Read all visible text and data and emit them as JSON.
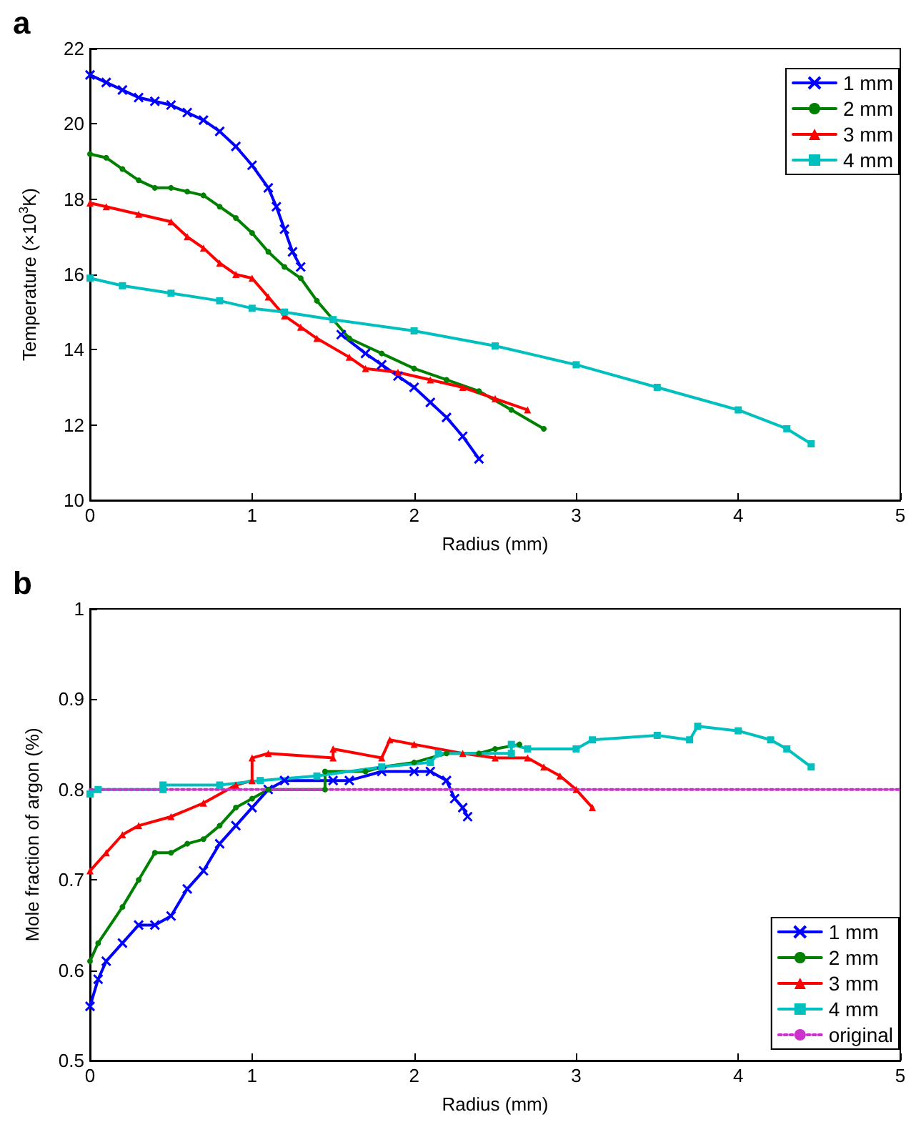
{
  "chart_data": [
    {
      "type": "line",
      "title": "a",
      "xlabel": "Radius (mm)",
      "ylabel": "Temperature (×10$^{3}$K)",
      "xlim": [
        0,
        5
      ],
      "xticks": [
        0,
        1,
        2,
        3,
        4,
        5
      ],
      "ylim": [
        10,
        22
      ],
      "yticks": [
        10,
        12,
        14,
        16,
        18,
        20,
        22
      ],
      "legend": "top right",
      "grid": false,
      "series": [
        {
          "name": "1 mm",
          "color": "#0000ff",
          "marker": "cross",
          "x": [
            0,
            0.1,
            0.2,
            0.3,
            0.4,
            0.5,
            0.6,
            0.7,
            0.8,
            0.9,
            1.0,
            1.1,
            1.15,
            1.2,
            1.25,
            1.3,
            1.4,
            1.55,
            1.7,
            1.8,
            1.9,
            2.0,
            2.1,
            2.2,
            2.3,
            2.4
          ],
          "values": [
            21.3,
            21.1,
            20.9,
            20.7,
            20.6,
            20.5,
            20.3,
            20.1,
            19.8,
            19.4,
            18.9,
            18.3,
            17.8,
            17.2,
            16.6,
            16.2,
            null,
            14.4,
            13.9,
            13.6,
            13.3,
            13.0,
            12.6,
            12.2,
            11.7,
            11.1
          ]
        },
        {
          "name": "2 mm",
          "color": "#008000",
          "marker": "circle",
          "x": [
            0,
            0.1,
            0.2,
            0.3,
            0.4,
            0.5,
            0.6,
            0.7,
            0.8,
            0.9,
            1.0,
            1.1,
            1.2,
            1.3,
            1.4,
            1.5,
            1.6,
            1.8,
            2.0,
            2.2,
            2.4,
            2.6,
            2.8
          ],
          "values": [
            19.2,
            19.1,
            18.8,
            18.5,
            18.3,
            18.3,
            18.2,
            18.1,
            17.8,
            17.5,
            17.1,
            16.6,
            16.2,
            15.9,
            15.3,
            14.8,
            14.3,
            13.9,
            13.5,
            13.2,
            12.9,
            12.4,
            11.9
          ]
        },
        {
          "name": "3 mm",
          "color": "#ff0000",
          "marker": "triangle",
          "x": [
            0,
            0.1,
            0.3,
            0.5,
            0.6,
            0.7,
            0.8,
            0.9,
            1.0,
            1.1,
            1.2,
            1.3,
            1.4,
            1.6,
            1.7,
            1.9,
            2.1,
            2.3,
            2.5,
            2.7
          ],
          "values": [
            17.9,
            17.8,
            17.6,
            17.4,
            17.0,
            16.7,
            16.3,
            16.0,
            15.9,
            15.4,
            14.9,
            14.6,
            14.3,
            13.8,
            13.5,
            13.4,
            13.2,
            13.0,
            12.7,
            12.4
          ]
        },
        {
          "name": "4 mm",
          "color": "#00bfbf",
          "marker": "square",
          "x": [
            0,
            0.2,
            0.5,
            0.8,
            1.0,
            1.2,
            1.5,
            2.0,
            2.5,
            3.0,
            3.5,
            4.0,
            4.3,
            4.45
          ],
          "values": [
            15.9,
            15.7,
            15.5,
            15.3,
            15.1,
            15.0,
            14.8,
            14.5,
            14.1,
            13.6,
            13.0,
            12.4,
            11.9,
            11.5
          ]
        }
      ]
    },
    {
      "type": "line",
      "title": "b",
      "xlabel": "Radius (mm)",
      "ylabel": "Mole fraction of argon (%)",
      "xlim": [
        0,
        5
      ],
      "xticks": [
        0,
        1,
        2,
        3,
        4,
        5
      ],
      "ylim": [
        0.5,
        1
      ],
      "yticks": [
        0.5,
        0.6,
        0.7,
        0.8,
        0.9,
        1
      ],
      "legend": "bottom right",
      "grid": false,
      "series": [
        {
          "name": "1 mm",
          "color": "#0000ff",
          "marker": "cross",
          "x": [
            0,
            0.05,
            0.1,
            0.2,
            0.3,
            0.4,
            0.5,
            0.6,
            0.7,
            0.8,
            0.9,
            1.0,
            1.1,
            1.2,
            1.5,
            1.6,
            1.8,
            2.0,
            2.1,
            2.2,
            2.25,
            2.3,
            2.33
          ],
          "values": [
            0.56,
            0.59,
            0.61,
            0.63,
            0.65,
            0.65,
            0.66,
            0.69,
            0.71,
            0.74,
            0.76,
            0.78,
            0.8,
            0.81,
            0.81,
            0.81,
            0.82,
            0.82,
            0.82,
            0.81,
            0.79,
            0.78,
            0.77
          ]
        },
        {
          "name": "2 mm",
          "color": "#008000",
          "marker": "circle",
          "x": [
            0,
            0.05,
            0.2,
            0.3,
            0.4,
            0.5,
            0.6,
            0.7,
            0.8,
            0.9,
            1.0,
            1.1,
            1.45,
            1.45,
            1.7,
            1.8,
            2.0,
            2.2,
            2.4,
            2.5,
            2.65
          ],
          "values": [
            0.61,
            0.63,
            0.67,
            0.7,
            0.73,
            0.73,
            0.74,
            0.745,
            0.76,
            0.78,
            0.79,
            0.8,
            0.8,
            0.82,
            0.82,
            0.825,
            0.83,
            0.84,
            0.84,
            0.845,
            0.85
          ]
        },
        {
          "name": "3 mm",
          "color": "#ff0000",
          "marker": "triangle",
          "x": [
            0,
            0.1,
            0.2,
            0.3,
            0.5,
            0.7,
            0.9,
            1.0,
            1.0,
            1.1,
            1.5,
            1.5,
            1.8,
            1.85,
            2.0,
            2.3,
            2.5,
            2.7,
            2.8,
            2.9,
            3.0,
            3.1
          ],
          "values": [
            0.71,
            0.73,
            0.75,
            0.76,
            0.77,
            0.785,
            0.805,
            0.81,
            0.835,
            0.84,
            0.835,
            0.845,
            0.835,
            0.855,
            0.85,
            0.84,
            0.835,
            0.835,
            0.825,
            0.815,
            0.8,
            0.78
          ]
        },
        {
          "name": "4 mm",
          "color": "#00bfbf",
          "marker": "square",
          "x": [
            0,
            0.05,
            0.45,
            0.45,
            0.8,
            1.05,
            1.4,
            1.8,
            2.1,
            2.15,
            2.6,
            2.6,
            2.7,
            3.0,
            3.1,
            3.5,
            3.7,
            3.75,
            4.0,
            4.2,
            4.3,
            4.45
          ],
          "values": [
            0.795,
            0.8,
            0.8,
            0.805,
            0.805,
            0.81,
            0.815,
            0.825,
            0.83,
            0.84,
            0.84,
            0.85,
            0.845,
            0.845,
            0.855,
            0.86,
            0.855,
            0.87,
            0.865,
            0.855,
            0.845,
            0.825
          ]
        },
        {
          "name": "original",
          "color": "#cc33cc",
          "marker": "none",
          "line_style": "dotted",
          "x": [
            0,
            5
          ],
          "values": [
            0.8,
            0.8
          ]
        }
      ]
    }
  ]
}
